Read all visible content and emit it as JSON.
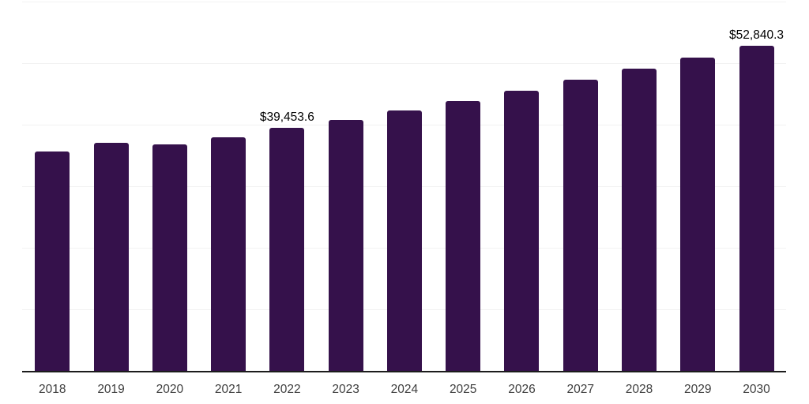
{
  "chart_data": {
    "type": "bar",
    "title": "",
    "xlabel": "",
    "ylabel": "",
    "categories": [
      "2018",
      "2019",
      "2020",
      "2021",
      "2022",
      "2023",
      "2024",
      "2025",
      "2026",
      "2027",
      "2028",
      "2029",
      "2030"
    ],
    "values": [
      35700,
      37050,
      36800,
      38000,
      39453.6,
      40750,
      42250,
      43800,
      45500,
      47250,
      49050,
      50950,
      52840.3
    ],
    "data_labels": [
      {
        "category": "2022",
        "text": "$39,453.6"
      },
      {
        "category": "2030",
        "text": "$52,840.3"
      }
    ],
    "ylim": [
      0,
      60000
    ],
    "gridline_step": 10000,
    "grid": "horizontal-only",
    "legend": "none",
    "y_tick_labels_visible": false,
    "colors": {
      "bar": "#35114b",
      "axis_line": "#1c1c1c",
      "gridline": "#f2f2f2",
      "tick_label": "#3e3e3e",
      "data_label": "#000000",
      "background": "#ffffff"
    }
  }
}
